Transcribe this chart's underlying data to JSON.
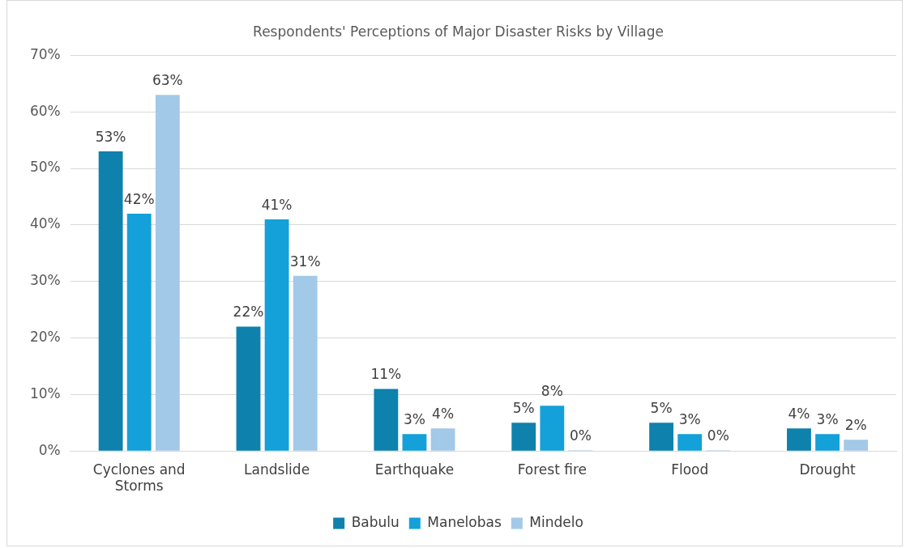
{
  "chart_data": {
    "type": "bar",
    "title": "Respondents' Perceptions of Major Disaster Risks by Village",
    "categories": [
      "Cyclones and Storms",
      "Landslide",
      "Earthquake",
      "Forest fire",
      "Flood",
      "Drought"
    ],
    "series": [
      {
        "name": "Babulu",
        "color": "#0e81ad",
        "values": [
          53,
          22,
          11,
          5,
          5,
          4
        ],
        "value_labels": [
          "53%",
          "22%",
          "11%",
          "5%",
          "5%",
          "4%"
        ]
      },
      {
        "name": "Manelobas",
        "color": "#14a0d9",
        "values": [
          42,
          41,
          3,
          8,
          3,
          3
        ],
        "value_labels": [
          "42%",
          "41%",
          "3%",
          "8%",
          "3%",
          "3%"
        ]
      },
      {
        "name": "Mindelo",
        "color": "#a3c9e8",
        "values": [
          63,
          31,
          4,
          0,
          0,
          2
        ],
        "value_labels": [
          "63%",
          "31%",
          "4%",
          "0%",
          "0%",
          "2%"
        ]
      }
    ],
    "ylim": [
      0,
      70
    ],
    "yticks": [
      {
        "value": 0,
        "label": "0%"
      },
      {
        "value": 10,
        "label": "10%"
      },
      {
        "value": 20,
        "label": "20%"
      },
      {
        "value": 30,
        "label": "30%"
      },
      {
        "value": 40,
        "label": "40%"
      },
      {
        "value": 50,
        "label": "50%"
      },
      {
        "value": 60,
        "label": "60%"
      },
      {
        "value": 70,
        "label": "70%"
      }
    ],
    "grid": "y",
    "legend": "bottom"
  }
}
